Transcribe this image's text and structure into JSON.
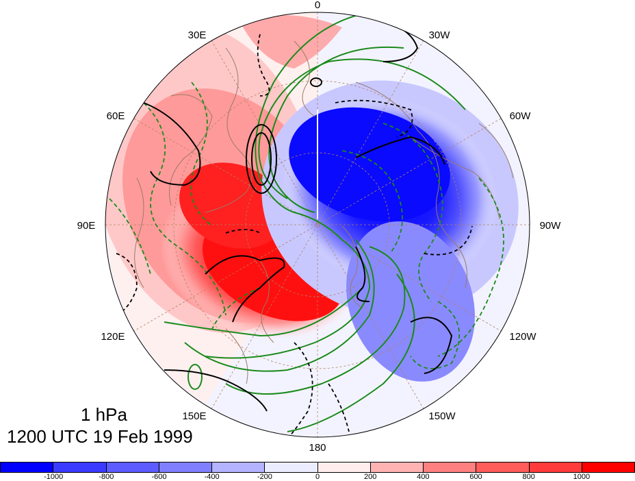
{
  "map": {
    "projection": "north polar stereographic",
    "longitude_labels": [
      "0",
      "30W",
      "60W",
      "90W",
      "120W",
      "150W",
      "180",
      "150E",
      "120E",
      "90E",
      "60E",
      "30E"
    ],
    "fill_field": "shaded anomaly, red positive / blue negative",
    "contours": {
      "black_solid": "positive",
      "black_dashed": "negative",
      "green_solid": "positive",
      "green_dashed": "negative"
    },
    "coastline_color": "#9a7a66",
    "graticule_color": "#b08060"
  },
  "annotation": {
    "level": "1 hPa",
    "valid_time": "1200 UTC 19 Feb 1999"
  },
  "colorbar": {
    "colors": [
      "#0000ff",
      "#3b3bff",
      "#5c5cff",
      "#8080ff",
      "#b3b3ff",
      "#ececff",
      "#ffeded",
      "#ffb3b3",
      "#ff8080",
      "#ff5c5c",
      "#ff3b3b",
      "#ff0000"
    ],
    "tick_labels": [
      "-1000",
      "-800",
      "-600",
      "-400",
      "-200",
      "0",
      "200",
      "400",
      "600",
      "800",
      "1000"
    ]
  }
}
